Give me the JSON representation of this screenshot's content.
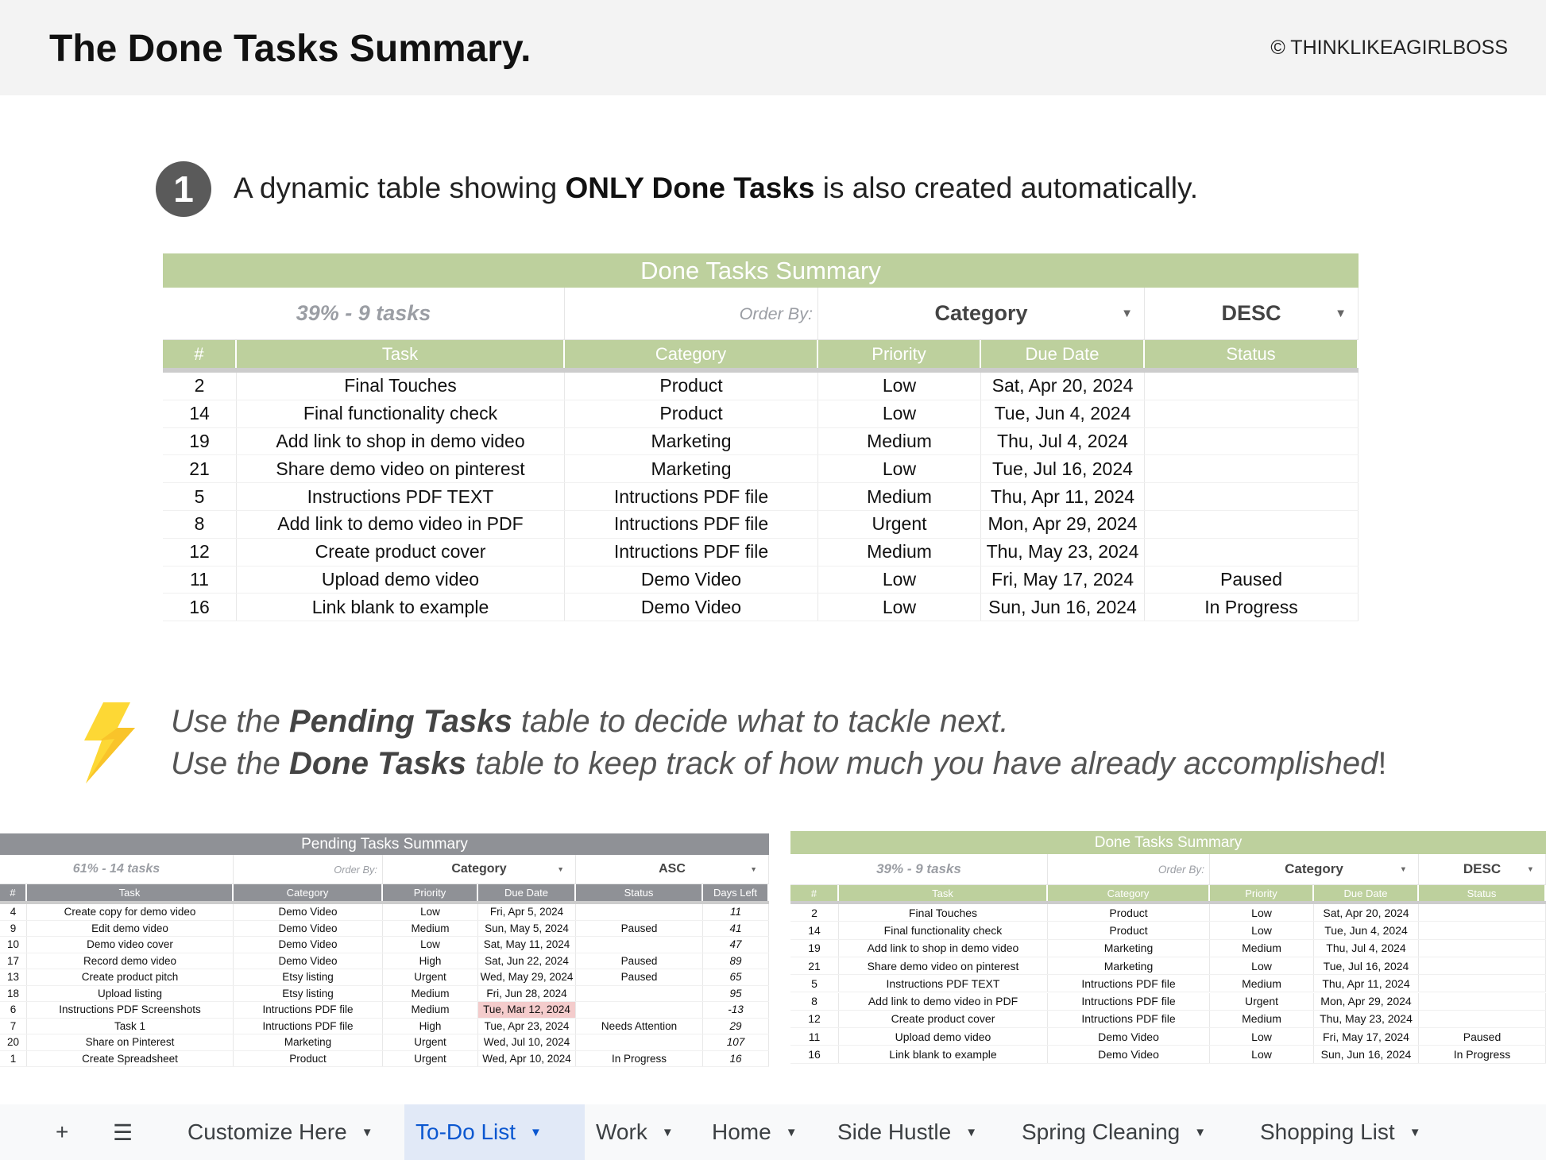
{
  "header": {
    "title": "The Done Tasks Summary.",
    "copyright": "© THINKLIKEAGIRLBOSS"
  },
  "statement": {
    "number": "1",
    "pre": "A dynamic table showing ",
    "bold": "ONLY Done Tasks",
    "post": " is also created automatically."
  },
  "tips": [
    {
      "pre": "Use the ",
      "bold": "Pending Tasks",
      "post": " table to decide what to tackle next."
    },
    {
      "pre": "Use the ",
      "bold": "Done Tasks",
      "post": " table to keep track of how much you have already accomplished",
      "end": "!"
    }
  ],
  "colors": {
    "done_green": "#bdd09d",
    "pending_gray": "#8f9196",
    "overdue": "#f4cccc",
    "active_tab": "#0b57d0"
  },
  "done_table": {
    "title": "Done Tasks Summary",
    "summary": "39% - 9 tasks",
    "order_by_label": "Order By:",
    "order_by": "Category",
    "direction": "DESC",
    "columns": [
      "#",
      "Task",
      "Category",
      "Priority",
      "Due Date",
      "Status"
    ],
    "rows": [
      [
        "2",
        "Final Touches",
        "Product",
        "Low",
        "Sat, Apr 20, 2024",
        ""
      ],
      [
        "14",
        "Final functionality check",
        "Product",
        "Low",
        "Tue, Jun 4, 2024",
        ""
      ],
      [
        "19",
        "Add link to shop in demo video",
        "Marketing",
        "Medium",
        "Thu, Jul 4, 2024",
        ""
      ],
      [
        "21",
        "Share demo video on pinterest",
        "Marketing",
        "Low",
        "Tue, Jul 16, 2024",
        ""
      ],
      [
        "5",
        "Instructions PDF TEXT",
        "Intructions PDF file",
        "Medium",
        "Thu, Apr 11, 2024",
        ""
      ],
      [
        "8",
        "Add link to demo video in PDF",
        "Intructions PDF file",
        "Urgent",
        "Mon, Apr 29, 2024",
        ""
      ],
      [
        "12",
        "Create product cover",
        "Intructions PDF file",
        "Medium",
        "Thu, May 23, 2024",
        ""
      ],
      [
        "11",
        "Upload demo video",
        "Demo Video",
        "Low",
        "Fri, May 17, 2024",
        "Paused"
      ],
      [
        "16",
        "Link blank to example",
        "Demo Video",
        "Low",
        "Sun, Jun 16, 2024",
        "In Progress"
      ]
    ]
  },
  "pending_table": {
    "title": "Pending Tasks Summary",
    "summary": "61% - 14 tasks",
    "order_by_label": "Order By:",
    "order_by": "Category",
    "direction": "ASC",
    "columns": [
      "#",
      "Task",
      "Category",
      "Priority",
      "Due Date",
      "Status",
      "Days Left"
    ],
    "rows": [
      [
        "4",
        "Create copy for demo video",
        "Demo Video",
        "Low",
        "Fri, Apr 5, 2024",
        "",
        "11"
      ],
      [
        "9",
        "Edit demo video",
        "Demo Video",
        "Medium",
        "Sun, May 5, 2024",
        "Paused",
        "41"
      ],
      [
        "10",
        "Demo video cover",
        "Demo Video",
        "Low",
        "Sat, May 11, 2024",
        "",
        "47"
      ],
      [
        "17",
        "Record demo video",
        "Demo Video",
        "High",
        "Sat, Jun 22, 2024",
        "Paused",
        "89"
      ],
      [
        "13",
        "Create product pitch",
        "Etsy listing",
        "Urgent",
        "Wed, May 29, 2024",
        "Paused",
        "65"
      ],
      [
        "18",
        "Upload listing",
        "Etsy listing",
        "Medium",
        "Fri, Jun 28, 2024",
        "",
        "95"
      ],
      [
        "6",
        "Instructions PDF Screenshots",
        "Intructions PDF file",
        "Medium",
        "Tue, Mar 12, 2024",
        "",
        "-13"
      ],
      [
        "7",
        "Task 1",
        "Intructions PDF file",
        "High",
        "Tue, Apr 23, 2024",
        "Needs Attention",
        "29"
      ],
      [
        "20",
        "Share on Pinterest",
        "Marketing",
        "Urgent",
        "Wed, Jul 10, 2024",
        "",
        "107"
      ],
      [
        "1",
        "Create Spreadsheet",
        "Product",
        "Urgent",
        "Wed, Apr 10, 2024",
        "In Progress",
        "16"
      ]
    ],
    "overdue_rows": [
      6
    ]
  },
  "sheet_tabs": {
    "add_icon": "plus-icon",
    "menu_icon": "menu-icon",
    "tabs": [
      "Customize Here",
      "To-Do List",
      "Work",
      "Home",
      "Side Hustle",
      "Spring Cleaning",
      "Shopping List"
    ],
    "active": "To-Do List"
  }
}
